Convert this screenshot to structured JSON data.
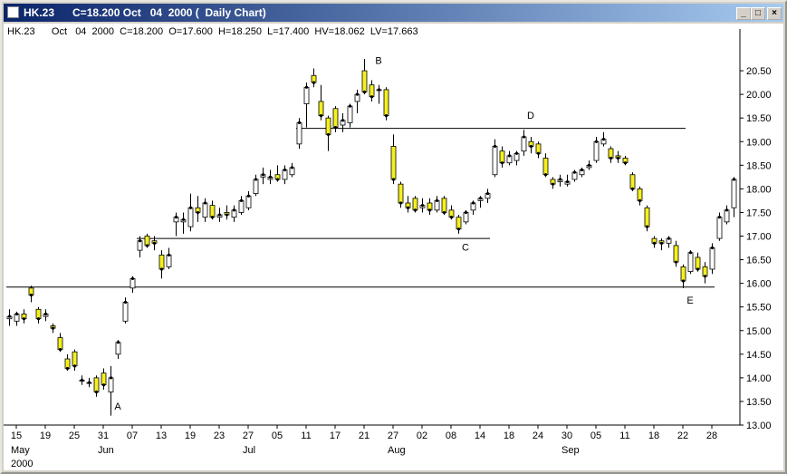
{
  "window_title": "HK.23      C=18.200 Oct   04  2000 (  Daily Chart)",
  "chart_data": {
    "type": "candlestick",
    "header": "HK.23      Oct   04  2000  C=18.200  O=17.600  H=18.250  L=17.400  HV=18.062  LV=17.663",
    "up_color": "#ffffff",
    "down_color": "#f5f01e",
    "ylim": [
      13,
      21
    ],
    "yticks": [
      {
        "value": 13,
        "label": "13.00"
      },
      {
        "value": 13.5,
        "label": "13.50"
      },
      {
        "value": 14,
        "label": "14.00"
      },
      {
        "value": 14.5,
        "label": "14.50"
      },
      {
        "value": 15,
        "label": "15.00"
      },
      {
        "value": 15.5,
        "label": "15.50"
      },
      {
        "value": 16,
        "label": "16.00"
      },
      {
        "value": 16.5,
        "label": "16.50"
      },
      {
        "value": 17,
        "label": "17.00"
      },
      {
        "value": 17.5,
        "label": "17.50"
      },
      {
        "value": 18,
        "label": "18.00"
      },
      {
        "value": 18.5,
        "label": "18.50"
      },
      {
        "value": 19,
        "label": "19.00"
      },
      {
        "value": 19.5,
        "label": "19.50"
      },
      {
        "value": 20,
        "label": "20.00"
      },
      {
        "value": 20.5,
        "label": "20.50"
      }
    ],
    "categories": [
      null,
      "15",
      null,
      null,
      null,
      "19",
      null,
      null,
      null,
      "25",
      null,
      null,
      null,
      "31",
      null,
      null,
      null,
      "07",
      null,
      null,
      null,
      "13",
      null,
      null,
      null,
      "19",
      null,
      null,
      null,
      "23",
      null,
      null,
      null,
      "27",
      null,
      null,
      null,
      "05",
      null,
      null,
      null,
      "11",
      null,
      null,
      null,
      "17",
      null,
      null,
      null,
      "21",
      null,
      null,
      null,
      "27",
      null,
      null,
      null,
      "02",
      null,
      null,
      null,
      "08",
      null,
      null,
      null,
      "14",
      null,
      null,
      null,
      "18",
      null,
      null,
      null,
      "24",
      null,
      null,
      null,
      "30",
      null,
      null,
      null,
      "05",
      null,
      null,
      null,
      "11",
      null,
      null,
      null,
      "18",
      null,
      null,
      null,
      "22",
      null,
      null,
      null,
      "28",
      null,
      null,
      null
    ],
    "months": [
      null,
      "May",
      null,
      null,
      null,
      null,
      null,
      null,
      null,
      null,
      null,
      null,
      null,
      "Jun",
      null,
      null,
      null,
      null,
      null,
      null,
      null,
      null,
      null,
      null,
      null,
      null,
      null,
      null,
      null,
      null,
      null,
      null,
      null,
      "Jul",
      null,
      null,
      null,
      null,
      null,
      null,
      null,
      null,
      null,
      null,
      null,
      null,
      null,
      null,
      null,
      null,
      null,
      null,
      null,
      "Aug",
      null,
      null,
      null,
      null,
      null,
      null,
      null,
      null,
      null,
      null,
      null,
      null,
      null,
      null,
      null,
      null,
      null,
      null,
      null,
      null,
      null,
      null,
      null,
      "Sep",
      null,
      null,
      null,
      null,
      null,
      null,
      null,
      null,
      null,
      null,
      null,
      null,
      null,
      null,
      null,
      null,
      null,
      null,
      null,
      null,
      null,
      null,
      null
    ],
    "year": "2000",
    "candles": [
      [
        15.25,
        15.45,
        15.1,
        15.3
      ],
      [
        15.2,
        15.4,
        15.1,
        15.35
      ],
      [
        15.35,
        15.45,
        15.15,
        15.25
      ],
      [
        15.9,
        15.95,
        15.6,
        15.75
      ],
      [
        15.45,
        15.5,
        15.15,
        15.25
      ],
      [
        15.3,
        15.45,
        15.2,
        15.35
      ],
      [
        15.1,
        15.15,
        14.95,
        15.05
      ],
      [
        14.85,
        14.95,
        14.55,
        14.6
      ],
      [
        14.4,
        14.5,
        14.15,
        14.2
      ],
      [
        14.55,
        14.6,
        14.15,
        14.25
      ],
      [
        13.95,
        14.05,
        13.85,
        13.95
      ],
      [
        13.9,
        14.0,
        13.8,
        13.9
      ],
      [
        14.0,
        14.05,
        13.6,
        13.7
      ],
      [
        14.1,
        14.2,
        13.75,
        13.85
      ],
      [
        13.7,
        14.25,
        13.2,
        14.0
      ],
      [
        14.5,
        14.8,
        14.4,
        14.75
      ],
      [
        15.2,
        15.7,
        15.15,
        15.6
      ],
      [
        15.9,
        16.15,
        15.8,
        16.1
      ],
      [
        16.7,
        17.0,
        16.55,
        16.9
      ],
      [
        17.0,
        17.05,
        16.75,
        16.8
      ],
      [
        16.9,
        17.0,
        16.7,
        16.85
      ],
      [
        16.6,
        16.7,
        16.1,
        16.3
      ],
      [
        16.35,
        16.75,
        16.3,
        16.6
      ],
      [
        17.3,
        17.5,
        17.0,
        17.4
      ],
      [
        17.3,
        17.5,
        17.05,
        17.35
      ],
      [
        17.2,
        17.9,
        17.1,
        17.6
      ],
      [
        17.6,
        17.85,
        17.3,
        17.5
      ],
      [
        17.4,
        17.8,
        17.3,
        17.7
      ],
      [
        17.65,
        17.75,
        17.35,
        17.4
      ],
      [
        17.4,
        17.6,
        17.3,
        17.45
      ],
      [
        17.5,
        17.65,
        17.35,
        17.45
      ],
      [
        17.4,
        17.65,
        17.3,
        17.55
      ],
      [
        17.5,
        17.85,
        17.45,
        17.75
      ],
      [
        17.6,
        17.95,
        17.55,
        17.85
      ],
      [
        17.9,
        18.3,
        17.85,
        18.2
      ],
      [
        18.25,
        18.45,
        18.1,
        18.3
      ],
      [
        18.2,
        18.4,
        18.1,
        18.25
      ],
      [
        18.3,
        18.5,
        18.15,
        18.2
      ],
      [
        18.2,
        18.5,
        18.1,
        18.4
      ],
      [
        18.3,
        18.55,
        18.25,
        18.45
      ],
      [
        18.95,
        19.5,
        18.85,
        19.4
      ],
      [
        19.8,
        20.25,
        19.3,
        20.15
      ],
      [
        20.4,
        20.55,
        20.15,
        20.25
      ],
      [
        19.85,
        20.2,
        19.45,
        19.55
      ],
      [
        19.5,
        19.55,
        18.8,
        19.15
      ],
      [
        19.7,
        19.75,
        19.2,
        19.3
      ],
      [
        19.35,
        19.6,
        19.2,
        19.45
      ],
      [
        19.4,
        19.8,
        19.3,
        19.75
      ],
      [
        19.85,
        20.1,
        19.6,
        20.0
      ],
      [
        20.5,
        20.75,
        20.0,
        20.05
      ],
      [
        20.2,
        20.3,
        19.85,
        19.95
      ],
      [
        20.1,
        20.2,
        19.8,
        20.1
      ],
      [
        20.1,
        20.15,
        19.45,
        19.55
      ],
      [
        18.9,
        19.15,
        18.1,
        18.2
      ],
      [
        18.1,
        18.15,
        17.6,
        17.7
      ],
      [
        17.7,
        17.85,
        17.5,
        17.6
      ],
      [
        17.8,
        17.85,
        17.5,
        17.55
      ],
      [
        17.6,
        17.8,
        17.5,
        17.65
      ],
      [
        17.7,
        17.8,
        17.45,
        17.55
      ],
      [
        17.55,
        17.85,
        17.5,
        17.75
      ],
      [
        17.8,
        17.85,
        17.45,
        17.5
      ],
      [
        17.55,
        17.65,
        17.35,
        17.4
      ],
      [
        17.4,
        17.45,
        17.05,
        17.15
      ],
      [
        17.3,
        17.55,
        17.25,
        17.5
      ],
      [
        17.55,
        17.75,
        17.45,
        17.7
      ],
      [
        17.75,
        17.85,
        17.6,
        17.8
      ],
      [
        17.8,
        18.0,
        17.7,
        17.9
      ],
      [
        18.3,
        19.05,
        18.25,
        18.9
      ],
      [
        18.8,
        18.9,
        18.45,
        18.55
      ],
      [
        18.55,
        18.8,
        18.5,
        18.7
      ],
      [
        18.6,
        18.8,
        18.5,
        18.75
      ],
      [
        18.8,
        19.25,
        18.7,
        19.1
      ],
      [
        19.0,
        19.1,
        18.75,
        18.9
      ],
      [
        18.95,
        19.0,
        18.65,
        18.75
      ],
      [
        18.65,
        18.75,
        18.25,
        18.3
      ],
      [
        18.2,
        18.25,
        18.0,
        18.1
      ],
      [
        18.15,
        18.3,
        18.05,
        18.2
      ],
      [
        18.1,
        18.3,
        18.05,
        18.15
      ],
      [
        18.2,
        18.4,
        18.15,
        18.35
      ],
      [
        18.3,
        18.45,
        18.25,
        18.4
      ],
      [
        18.45,
        18.6,
        18.4,
        18.5
      ],
      [
        18.6,
        19.1,
        18.55,
        19.0
      ],
      [
        18.95,
        19.2,
        18.9,
        19.05
      ],
      [
        18.85,
        18.9,
        18.55,
        18.65
      ],
      [
        18.7,
        18.8,
        18.55,
        18.65
      ],
      [
        18.65,
        18.7,
        18.5,
        18.55
      ],
      [
        18.3,
        18.35,
        17.95,
        18.0
      ],
      [
        18.0,
        18.05,
        17.65,
        17.75
      ],
      [
        17.6,
        17.65,
        17.1,
        17.2
      ],
      [
        16.95,
        17.0,
        16.75,
        16.85
      ],
      [
        16.9,
        16.95,
        16.7,
        16.85
      ],
      [
        16.85,
        17.0,
        16.75,
        16.95
      ],
      [
        16.8,
        16.9,
        16.35,
        16.45
      ],
      [
        16.35,
        16.4,
        15.9,
        16.05
      ],
      [
        16.25,
        16.7,
        16.2,
        16.65
      ],
      [
        16.55,
        16.65,
        16.25,
        16.3
      ],
      [
        16.35,
        16.45,
        16.0,
        16.15
      ],
      [
        16.3,
        16.85,
        16.2,
        16.75
      ],
      [
        16.95,
        17.5,
        16.9,
        17.4
      ],
      [
        17.3,
        17.65,
        17.25,
        17.55
      ],
      [
        17.6,
        18.25,
        17.4,
        18.2
      ]
    ],
    "levels": [
      {
        "value": 19.28,
        "from": 40,
        "to": 93
      },
      {
        "value": 16.95,
        "from": 18,
        "to": 66
      },
      {
        "value": 15.92,
        "from": 0,
        "to": 97
      }
    ],
    "annotations": [
      {
        "text": "A",
        "index": 15,
        "value": 13.4
      },
      {
        "text": "B",
        "index": 51,
        "value": 20.72
      },
      {
        "text": "C",
        "index": 63,
        "value": 16.77
      },
      {
        "text": "D",
        "index": 72,
        "value": 19.56
      },
      {
        "text": "E",
        "index": 94,
        "value": 15.65
      }
    ]
  }
}
